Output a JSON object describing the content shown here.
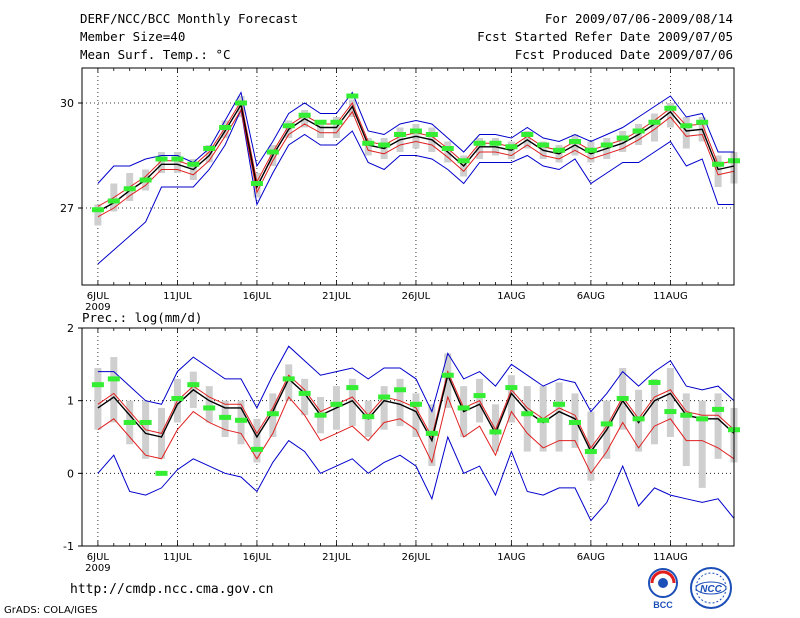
{
  "header": {
    "title": "DERF/NCC/BCC Monthly Forecast",
    "member_size": "Member Size=40",
    "variable_top": "Mean Surf. Temp.: °C",
    "period": "For 2009/07/06-2009/08/14",
    "start_date": "Fcst Started Refer Date 2009/07/05",
    "produced_date": "Fcst Produced Date 2009/07/06"
  },
  "footer": {
    "url": "http://cmdp.ncc.cma.gov.cn",
    "grads": "GrADS: COLA/IGES",
    "logo_bcc": "BCC",
    "logo_ncc": "NCC"
  },
  "colors": {
    "mean": "#000000",
    "spread": "#e02020",
    "envelope": "#0000cc",
    "box": "#cfcfcf",
    "clim": "#33ee33",
    "grid": "#000000"
  },
  "chart_data": [
    {
      "type": "line",
      "title": "Mean Surf. Temp.: °C",
      "x_tick_labels": [
        "6JUL",
        "11JUL",
        "16JUL",
        "21JUL",
        "26JUL",
        "1AUG",
        "6AUG",
        "11AUG"
      ],
      "x_year_label": "2009",
      "x_tick_days": [
        0,
        5,
        10,
        15,
        20,
        26,
        31,
        36
      ],
      "xlim": [
        -1,
        40
      ],
      "ylim": [
        24.8,
        31.0
      ],
      "y_tick_labels": [
        "30",
        "27"
      ],
      "y_ticks": [
        30,
        27
      ],
      "series": [
        {
          "name": "ensemble mean",
          "values": [
            26.9,
            27.15,
            27.5,
            27.8,
            28.25,
            28.25,
            28.1,
            28.5,
            29.2,
            29.95,
            27.6,
            28.5,
            29.25,
            29.55,
            29.3,
            29.3,
            29.9,
            28.8,
            28.7,
            28.95,
            29.05,
            28.95,
            28.6,
            28.2,
            28.75,
            28.75,
            28.65,
            28.95,
            28.65,
            28.55,
            28.8,
            28.55,
            28.7,
            28.85,
            29.1,
            29.4,
            29.75,
            29.2,
            29.25,
            28.1,
            28.2
          ]
        },
        {
          "name": "spread high",
          "values": [
            27.05,
            27.3,
            27.6,
            27.9,
            28.35,
            28.35,
            28.2,
            28.6,
            29.3,
            30.05,
            27.75,
            28.6,
            29.35,
            29.65,
            29.4,
            29.4,
            30.0,
            28.9,
            28.8,
            29.05,
            29.15,
            29.05,
            28.7,
            28.3,
            28.85,
            28.85,
            28.75,
            29.05,
            28.75,
            28.65,
            28.9,
            28.65,
            28.8,
            28.95,
            29.2,
            29.5,
            29.85,
            29.35,
            29.4,
            28.25,
            28.35
          ]
        },
        {
          "name": "spread low",
          "values": [
            26.75,
            27.0,
            27.35,
            27.65,
            28.1,
            28.1,
            27.95,
            28.35,
            29.05,
            29.8,
            27.45,
            28.35,
            29.1,
            29.4,
            29.15,
            29.15,
            29.75,
            28.65,
            28.55,
            28.8,
            28.9,
            28.8,
            28.45,
            28.05,
            28.6,
            28.6,
            28.5,
            28.8,
            28.5,
            28.4,
            28.65,
            28.4,
            28.55,
            28.7,
            28.95,
            29.25,
            29.6,
            29.05,
            29.1,
            27.95,
            28.05
          ]
        },
        {
          "name": "maximum",
          "values": [
            27.7,
            28.2,
            28.2,
            28.4,
            28.5,
            28.5,
            28.3,
            28.7,
            29.5,
            30.3,
            28.2,
            28.9,
            29.7,
            30.0,
            29.7,
            29.7,
            30.3,
            29.2,
            29.1,
            29.4,
            29.5,
            29.4,
            29.0,
            28.6,
            29.1,
            29.1,
            29.0,
            29.3,
            29.0,
            28.9,
            29.1,
            28.9,
            29.1,
            29.3,
            29.6,
            29.9,
            30.2,
            29.6,
            29.7,
            28.6,
            28.6
          ]
        },
        {
          "name": "minimum",
          "values": [
            25.4,
            25.8,
            26.2,
            26.6,
            27.6,
            27.6,
            27.6,
            28.1,
            28.8,
            29.8,
            27.1,
            28.0,
            28.8,
            29.1,
            28.8,
            28.8,
            29.2,
            28.3,
            28.1,
            28.5,
            28.5,
            28.4,
            28.1,
            27.7,
            28.3,
            28.3,
            28.3,
            28.5,
            28.2,
            28.1,
            28.4,
            27.7,
            28.0,
            28.3,
            28.3,
            28.6,
            28.9,
            28.2,
            28.4,
            27.1,
            27.1
          ]
        },
        {
          "name": "box high",
          "values": [
            27.1,
            27.7,
            28.0,
            28.1,
            28.6,
            28.6,
            28.4,
            28.8,
            29.5,
            30.2,
            28.0,
            28.8,
            29.5,
            29.8,
            29.5,
            29.6,
            30.1,
            29.0,
            29.0,
            29.3,
            29.4,
            29.3,
            28.9,
            28.5,
            29.0,
            29.0,
            28.9,
            29.2,
            28.9,
            28.8,
            29.1,
            28.9,
            29.0,
            29.2,
            29.4,
            29.7,
            30.0,
            29.6,
            29.6,
            28.5,
            28.6
          ]
        },
        {
          "name": "box low",
          "values": [
            26.5,
            26.9,
            27.2,
            27.5,
            28.0,
            28.0,
            27.8,
            28.3,
            29.0,
            29.6,
            27.3,
            28.2,
            29.0,
            29.3,
            29.0,
            29.0,
            29.6,
            28.5,
            28.4,
            28.6,
            28.7,
            28.6,
            28.3,
            27.9,
            28.4,
            28.5,
            28.4,
            28.7,
            28.4,
            28.3,
            28.5,
            28.3,
            28.4,
            28.6,
            28.8,
            28.9,
            29.3,
            28.7,
            28.9,
            27.6,
            27.7
          ]
        },
        {
          "name": "climatology",
          "values": [
            26.95,
            27.2,
            27.55,
            27.8,
            28.4,
            28.4,
            28.25,
            28.7,
            29.3,
            30.0,
            27.7,
            28.6,
            29.35,
            29.65,
            29.45,
            29.45,
            30.2,
            28.85,
            28.8,
            29.1,
            29.2,
            29.1,
            28.7,
            28.35,
            28.85,
            28.85,
            28.75,
            29.1,
            28.8,
            28.65,
            28.9,
            28.65,
            28.8,
            29.0,
            29.2,
            29.45,
            29.85,
            29.35,
            29.45,
            28.25,
            28.35
          ]
        }
      ]
    },
    {
      "type": "line",
      "title": "Prec.: log(mm/d)",
      "x_tick_labels": [
        "6JUL",
        "11JUL",
        "16JUL",
        "21JUL",
        "26JUL",
        "1AUG",
        "6AUG",
        "11AUG"
      ],
      "x_year_label": "2009",
      "x_tick_days": [
        0,
        5,
        10,
        15,
        20,
        26,
        31,
        36
      ],
      "xlim": [
        -1,
        40
      ],
      "ylim": [
        -1,
        2
      ],
      "y_tick_labels": [
        "2",
        "1",
        "0",
        "-1"
      ],
      "y_ticks": [
        2,
        1,
        0,
        -1
      ],
      "series": [
        {
          "name": "ensemble mean",
          "values": [
            0.9,
            1.05,
            0.8,
            0.55,
            0.5,
            0.95,
            1.15,
            1.0,
            0.9,
            0.9,
            0.5,
            0.85,
            1.3,
            1.1,
            0.8,
            0.9,
            1.0,
            0.75,
            1.0,
            0.95,
            0.85,
            0.45,
            1.35,
            0.85,
            0.95,
            0.55,
            1.1,
            0.85,
            0.7,
            0.85,
            0.75,
            0.3,
            0.6,
            1.0,
            0.7,
            1.0,
            1.1,
            0.8,
            0.75,
            0.75,
            0.55
          ]
        },
        {
          "name": "spread high",
          "values": [
            0.95,
            1.1,
            0.85,
            0.6,
            0.55,
            1.0,
            1.2,
            1.05,
            0.95,
            0.95,
            0.55,
            0.9,
            1.35,
            1.15,
            0.85,
            0.95,
            1.05,
            0.8,
            1.05,
            1.0,
            0.9,
            0.5,
            1.4,
            0.9,
            1.0,
            0.6,
            1.15,
            0.9,
            0.75,
            0.9,
            0.8,
            0.35,
            0.65,
            1.05,
            0.75,
            1.05,
            1.15,
            0.85,
            0.8,
            0.8,
            0.6
          ]
        },
        {
          "name": "spread low",
          "values": [
            0.6,
            0.75,
            0.5,
            0.25,
            0.2,
            0.6,
            0.85,
            0.7,
            0.6,
            0.55,
            0.2,
            0.55,
            1.05,
            0.8,
            0.45,
            0.55,
            0.65,
            0.45,
            0.7,
            0.75,
            0.6,
            0.15,
            1.05,
            0.5,
            0.65,
            0.25,
            0.85,
            0.55,
            0.35,
            0.45,
            0.45,
            0.0,
            0.3,
            0.7,
            0.35,
            0.65,
            0.75,
            0.45,
            0.45,
            0.35,
            0.2
          ]
        },
        {
          "name": "maximum",
          "values": [
            1.4,
            1.4,
            1.2,
            1.0,
            0.95,
            1.4,
            1.6,
            1.45,
            1.3,
            1.3,
            0.9,
            1.35,
            1.75,
            1.55,
            1.35,
            1.4,
            1.45,
            1.3,
            1.45,
            1.45,
            1.3,
            0.85,
            1.65,
            1.3,
            1.4,
            1.2,
            1.5,
            1.35,
            1.2,
            1.3,
            1.25,
            0.85,
            1.1,
            1.4,
            1.2,
            1.4,
            1.55,
            1.2,
            1.15,
            1.2,
            1.0
          ]
        },
        {
          "name": "minimum",
          "values": [
            0.0,
            0.25,
            -0.25,
            -0.3,
            -0.2,
            0.05,
            0.2,
            0.1,
            0.0,
            -0.05,
            -0.25,
            0.15,
            0.45,
            0.3,
            0.0,
            0.1,
            0.2,
            0.0,
            0.15,
            0.25,
            0.1,
            -0.35,
            0.5,
            0.0,
            0.1,
            -0.3,
            0.3,
            -0.25,
            -0.3,
            -0.2,
            -0.2,
            -0.65,
            -0.4,
            0.1,
            -0.45,
            -0.2,
            -0.3,
            -0.35,
            -0.4,
            -0.35,
            -0.62
          ]
        },
        {
          "name": "box high",
          "values": [
            1.45,
            1.6,
            1.0,
            1.0,
            0.9,
            1.3,
            1.4,
            1.2,
            1.0,
            1.0,
            0.75,
            1.1,
            1.5,
            1.3,
            1.05,
            1.2,
            1.3,
            1.0,
            1.2,
            1.3,
            1.1,
            0.95,
            1.65,
            1.2,
            1.3,
            0.95,
            1.35,
            1.2,
            1.2,
            1.25,
            1.1,
            0.85,
            1.0,
            1.45,
            1.15,
            1.3,
            1.45,
            1.1,
            1.0,
            1.1,
            0.9
          ]
        },
        {
          "name": "box low",
          "values": [
            0.6,
            0.7,
            0.4,
            0.2,
            0.2,
            0.7,
            0.9,
            0.7,
            0.5,
            0.4,
            0.15,
            0.5,
            1.0,
            0.8,
            0.55,
            0.6,
            0.65,
            0.5,
            0.6,
            0.65,
            0.5,
            0.1,
            0.9,
            0.5,
            0.7,
            0.3,
            0.7,
            0.3,
            0.3,
            0.3,
            0.35,
            -0.1,
            0.2,
            0.6,
            0.3,
            0.4,
            0.5,
            0.1,
            -0.2,
            0.2,
            0.15
          ]
        },
        {
          "name": "climatology",
          "values": [
            1.22,
            1.3,
            0.7,
            0.7,
            0.0,
            1.03,
            1.22,
            0.9,
            0.77,
            0.73,
            0.33,
            0.82,
            1.3,
            1.1,
            0.8,
            0.95,
            1.18,
            0.78,
            1.05,
            1.15,
            0.95,
            0.55,
            1.35,
            0.9,
            1.07,
            0.57,
            1.18,
            0.82,
            0.73,
            0.95,
            0.7,
            0.3,
            0.68,
            1.03,
            0.75,
            1.25,
            0.85,
            0.8,
            0.75,
            0.88,
            0.6
          ]
        }
      ]
    }
  ]
}
